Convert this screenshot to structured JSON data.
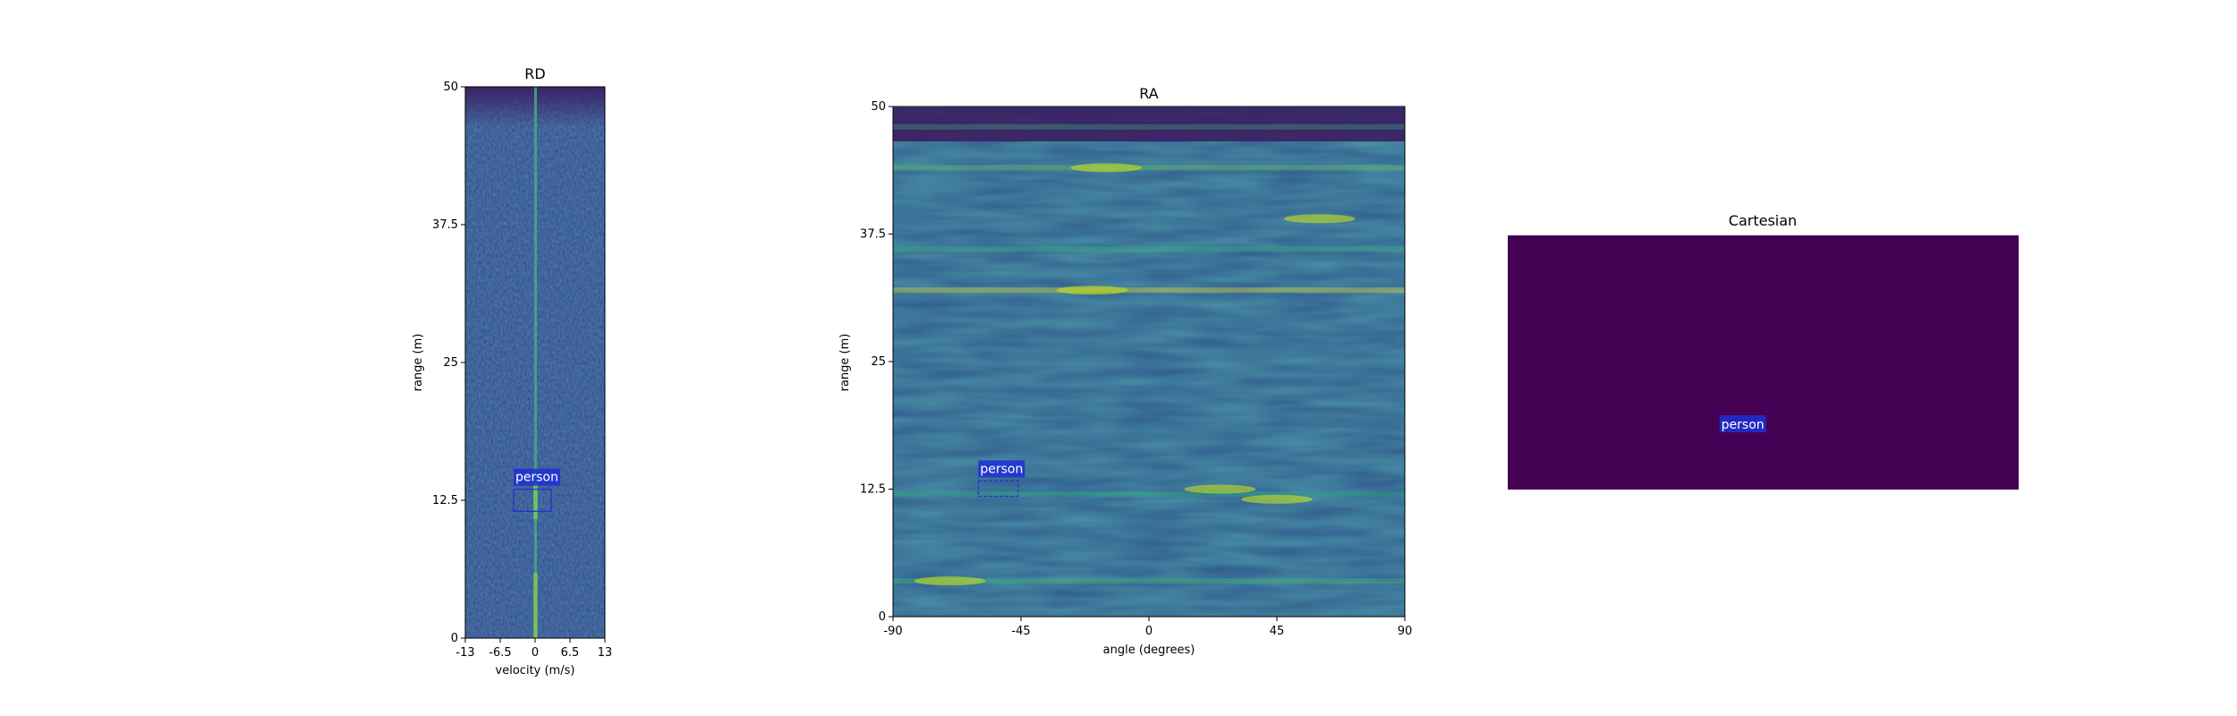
{
  "chart_data": [
    {
      "type": "heatmap",
      "title": "RD",
      "xlabel": "velocity (m/s)",
      "ylabel": "range (m)",
      "x_ticks": [
        -13,
        -6.5,
        0,
        6.5,
        13
      ],
      "x_tick_labels": [
        "-13",
        "-6.5",
        "0",
        "6.5",
        "13"
      ],
      "y_ticks": [
        0,
        12.5,
        25,
        37.5,
        50
      ],
      "y_tick_labels": [
        "0",
        "12.5",
        "25",
        "37.5",
        "50"
      ],
      "xlim": [
        -13,
        13
      ],
      "ylim": [
        0,
        50
      ],
      "colormap": "viridis",
      "detections": [
        {
          "label": "person",
          "x_range": [
            -4,
            3
          ],
          "y_range": [
            11.5,
            13.5
          ],
          "color": "#1f2fd6"
        }
      ]
    },
    {
      "type": "heatmap",
      "title": "RA",
      "xlabel": "angle (degrees)",
      "ylabel": "range (m)",
      "x_ticks": [
        -90,
        -45,
        0,
        45,
        90
      ],
      "x_tick_labels": [
        "-90",
        "-45",
        "0",
        "45",
        "90"
      ],
      "y_ticks": [
        0,
        12.5,
        25,
        37.5,
        50
      ],
      "y_tick_labels": [
        "0",
        "12.5",
        "25",
        "37.5",
        "50"
      ],
      "xlim": [
        -90,
        90
      ],
      "ylim": [
        0,
        50
      ],
      "colormap": "viridis",
      "bright_bands_range_m": [
        3.5,
        12,
        32,
        36,
        44,
        48
      ],
      "detections": [
        {
          "label": "person",
          "x_range": [
            -60,
            -46
          ],
          "y_range": [
            11.8,
            13.3
          ],
          "color": "#1f2fd6"
        }
      ]
    },
    {
      "type": "heatmap",
      "title": "Cartesian",
      "background_color": "#440154",
      "detections": [
        {
          "label": "person",
          "x_frac": 0.46,
          "y_frac": 0.75,
          "color": "#1f2fd6"
        }
      ]
    }
  ]
}
